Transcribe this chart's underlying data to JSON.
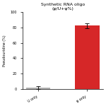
{
  "title": "Synthetic RNA oligo\n(ψ/U+ψ%)",
  "categories": [
    "U only",
    "ψ only"
  ],
  "values": [
    2,
    82
  ],
  "bar_colors": [
    "#b0b0b0",
    "#d62728"
  ],
  "ylabel": "Pseudouridine (%)",
  "ylim": [
    0,
    100
  ],
  "yticks": [
    0,
    20,
    40,
    60,
    80,
    100
  ],
  "error_bars": [
    1.5,
    3.0
  ],
  "background_color": "#ffffff",
  "title_fontsize": 4.5,
  "label_fontsize": 3.5,
  "tick_fontsize": 3.5
}
